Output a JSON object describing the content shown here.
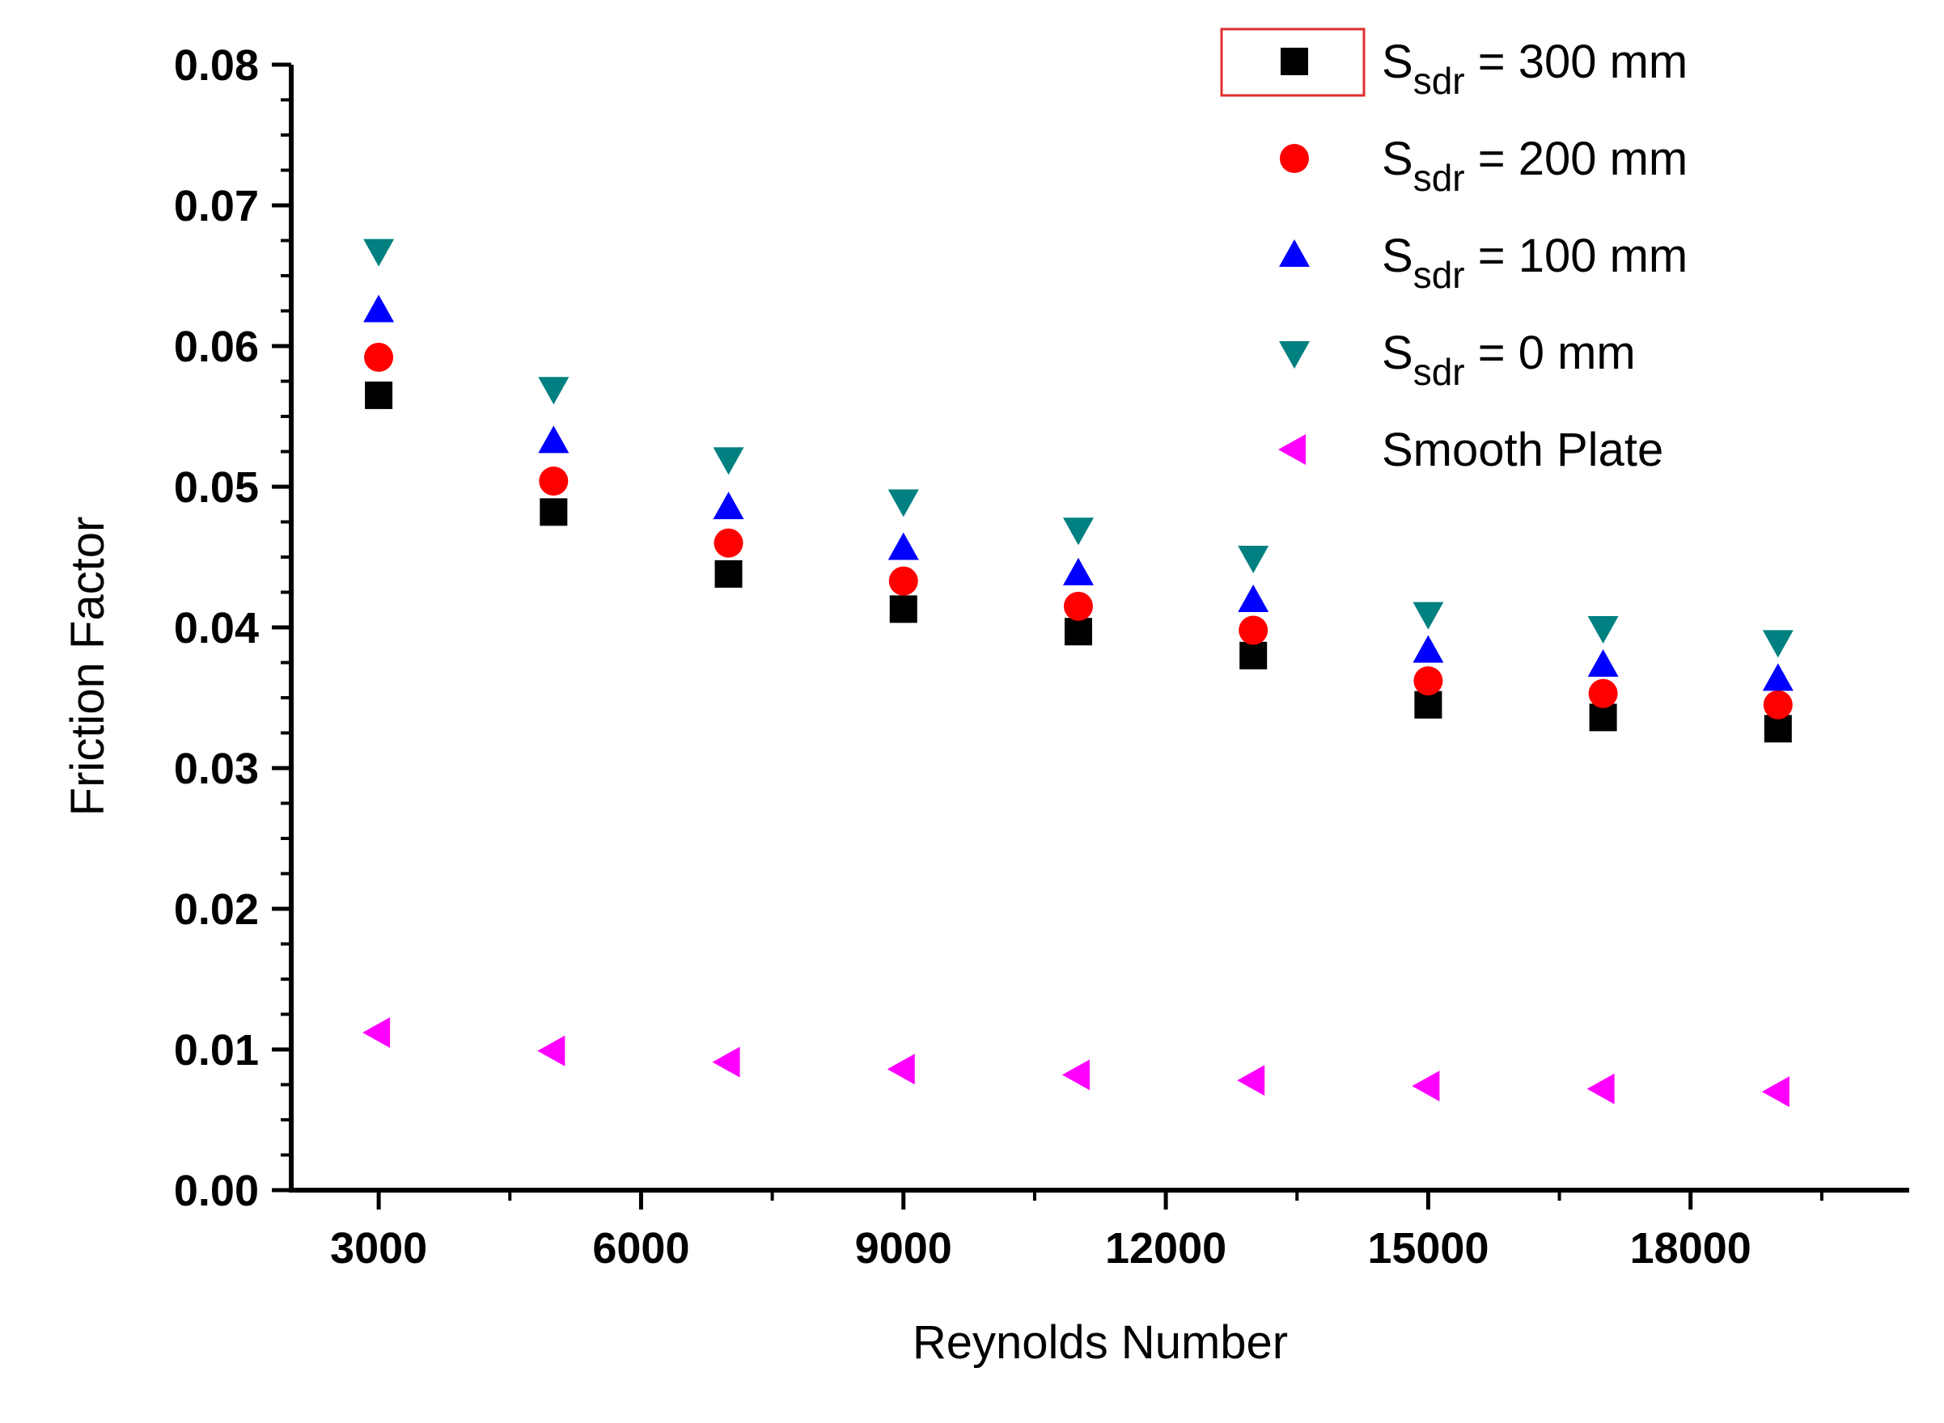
{
  "chart_data": {
    "type": "scatter",
    "title": "",
    "xlabel": "Reynolds Number",
    "ylabel": "Friction Factor",
    "xlim": [
      2000,
      20500
    ],
    "ylim": [
      0.0,
      0.08
    ],
    "xticks": [
      3000,
      6000,
      9000,
      12000,
      15000,
      18000
    ],
    "xtick_labels": [
      "3000",
      "6000",
      "9000",
      "12000",
      "15000",
      "18000"
    ],
    "yticks": [
      0.0,
      0.01,
      0.02,
      0.03,
      0.04,
      0.05,
      0.06,
      0.07,
      0.08
    ],
    "ytick_labels": [
      "0.00",
      "0.01",
      "0.02",
      "0.03",
      "0.04",
      "0.05",
      "0.06",
      "0.07",
      "0.08"
    ],
    "grid": false,
    "legend_position": "top-right",
    "x": [
      3000,
      5000,
      7000,
      9000,
      11000,
      13000,
      15000,
      17000,
      19000
    ],
    "series": [
      {
        "name": "Ssdr = 300 mm",
        "label_main": "S",
        "label_sub": "sdr",
        "label_rest": " = 300 mm",
        "marker": "square",
        "color": "#000000",
        "values": [
          0.0565,
          0.0482,
          0.0438,
          0.0413,
          0.0397,
          0.038,
          0.0345,
          0.0336,
          0.0328
        ]
      },
      {
        "name": "Ssdr = 200 mm",
        "label_main": "S",
        "label_sub": "sdr",
        "label_rest": " = 200 mm",
        "marker": "circle",
        "color": "#ff0000",
        "values": [
          0.0592,
          0.0504,
          0.046,
          0.0433,
          0.0415,
          0.0398,
          0.0362,
          0.0353,
          0.0345
        ]
      },
      {
        "name": "Ssdr = 100 mm",
        "label_main": "S",
        "label_sub": "sdr",
        "label_rest": " = 100 mm",
        "marker": "triangle-up",
        "color": "#0000ff",
        "values": [
          0.0625,
          0.0532,
          0.0485,
          0.0456,
          0.0438,
          0.0419,
          0.0383,
          0.0373,
          0.0363
        ]
      },
      {
        "name": "Ssdr = 0 mm",
        "label_main": "S",
        "label_sub": "sdr",
        "label_rest": " =  0 mm",
        "marker": "triangle-down",
        "color": "#008080",
        "values": [
          0.0668,
          0.057,
          0.052,
          0.049,
          0.047,
          0.045,
          0.041,
          0.04,
          0.039
        ]
      },
      {
        "name": "Smooth Plate",
        "label_main": "Smooth Plate",
        "label_sub": "",
        "label_rest": "",
        "marker": "triangle-left",
        "color": "#ff00ff",
        "values": [
          0.0112,
          0.0099,
          0.0091,
          0.0086,
          0.0082,
          0.0078,
          0.0074,
          0.0072,
          0.007
        ]
      }
    ]
  }
}
